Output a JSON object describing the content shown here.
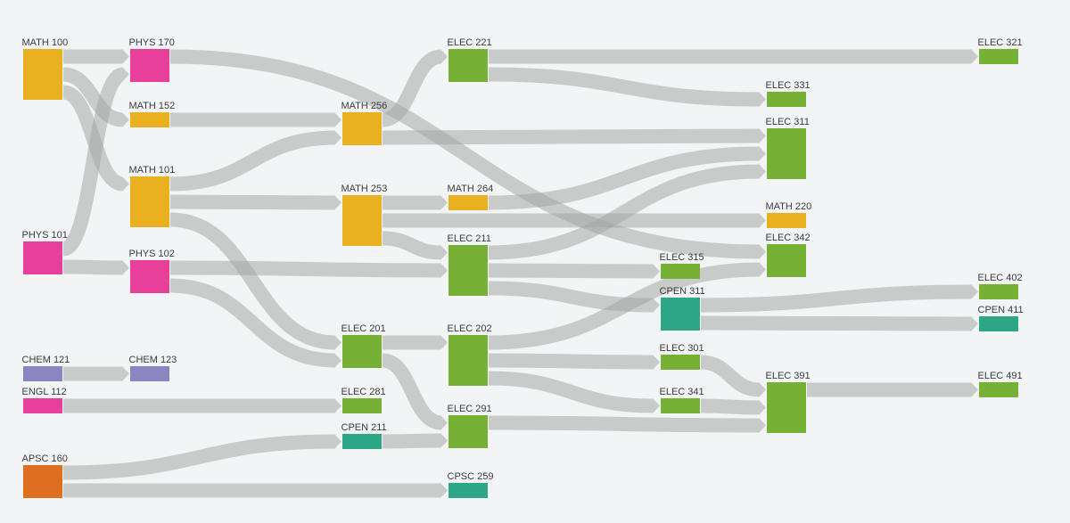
{
  "diagram": {
    "type": "sankey",
    "background": "#f3f4f6",
    "link_color": "#a3a5a3",
    "nodes": [
      {
        "label": "MATH 100",
        "color": "#e9b01f"
      },
      {
        "label": "PHYS 101",
        "color": "#e8409a"
      },
      {
        "label": "CHEM 121",
        "color": "#8b85c1"
      },
      {
        "label": "ENGL 112",
        "color": "#e8409a"
      },
      {
        "label": "APSC 160",
        "color": "#e06e1f"
      },
      {
        "label": "PHYS 170",
        "color": "#e8409a"
      },
      {
        "label": "MATH 152",
        "color": "#e9b01f"
      },
      {
        "label": "MATH 101",
        "color": "#e9b01f"
      },
      {
        "label": "PHYS 102",
        "color": "#e8409a"
      },
      {
        "label": "CHEM 123",
        "color": "#8b85c1"
      },
      {
        "label": "MATH 256",
        "color": "#e9b01f"
      },
      {
        "label": "MATH 253",
        "color": "#e9b01f"
      },
      {
        "label": "ELEC 201",
        "color": "#76b035"
      },
      {
        "label": "ELEC 281",
        "color": "#76b035"
      },
      {
        "label": "CPEN 211",
        "color": "#2ea788"
      },
      {
        "label": "ELEC 221",
        "color": "#76b035"
      },
      {
        "label": "MATH 264",
        "color": "#e9b01f"
      },
      {
        "label": "ELEC 211",
        "color": "#76b035"
      },
      {
        "label": "ELEC 202",
        "color": "#76b035"
      },
      {
        "label": "ELEC 291",
        "color": "#76b035"
      },
      {
        "label": "CPSC 259",
        "color": "#2ea788"
      },
      {
        "label": "ELEC 315",
        "color": "#76b035"
      },
      {
        "label": "CPEN 311",
        "color": "#2ea788"
      },
      {
        "label": "ELEC 301",
        "color": "#76b035"
      },
      {
        "label": "ELEC 341",
        "color": "#76b035"
      },
      {
        "label": "ELEC 331",
        "color": "#76b035"
      },
      {
        "label": "ELEC 311",
        "color": "#76b035"
      },
      {
        "label": "MATH 220",
        "color": "#e9b01f"
      },
      {
        "label": "ELEC 342",
        "color": "#76b035"
      },
      {
        "label": "ELEC 391",
        "color": "#76b035"
      },
      {
        "label": "ELEC 321",
        "color": "#76b035"
      },
      {
        "label": "ELEC 402",
        "color": "#76b035"
      },
      {
        "label": "CPEN 411",
        "color": "#2ea788"
      },
      {
        "label": "ELEC 491",
        "color": "#76b035"
      }
    ],
    "links": [
      [
        0,
        5
      ],
      [
        0,
        6
      ],
      [
        0,
        7
      ],
      [
        1,
        5
      ],
      [
        1,
        8
      ],
      [
        2,
        9
      ],
      [
        3,
        13
      ],
      [
        4,
        14
      ],
      [
        4,
        20
      ],
      [
        5,
        28
      ],
      [
        6,
        10
      ],
      [
        7,
        10
      ],
      [
        7,
        11
      ],
      [
        7,
        12
      ],
      [
        8,
        17
      ],
      [
        8,
        12
      ],
      [
        10,
        15
      ],
      [
        10,
        26
      ],
      [
        11,
        16
      ],
      [
        11,
        27
      ],
      [
        11,
        17
      ],
      [
        12,
        18
      ],
      [
        12,
        19
      ],
      [
        14,
        19
      ],
      [
        15,
        30
      ],
      [
        15,
        25
      ],
      [
        16,
        26
      ],
      [
        17,
        26
      ],
      [
        17,
        21
      ],
      [
        17,
        22
      ],
      [
        18,
        28
      ],
      [
        18,
        23
      ],
      [
        18,
        24
      ],
      [
        19,
        29
      ],
      [
        22,
        31
      ],
      [
        22,
        32
      ],
      [
        23,
        29
      ],
      [
        24,
        29
      ],
      [
        29,
        33
      ]
    ]
  }
}
